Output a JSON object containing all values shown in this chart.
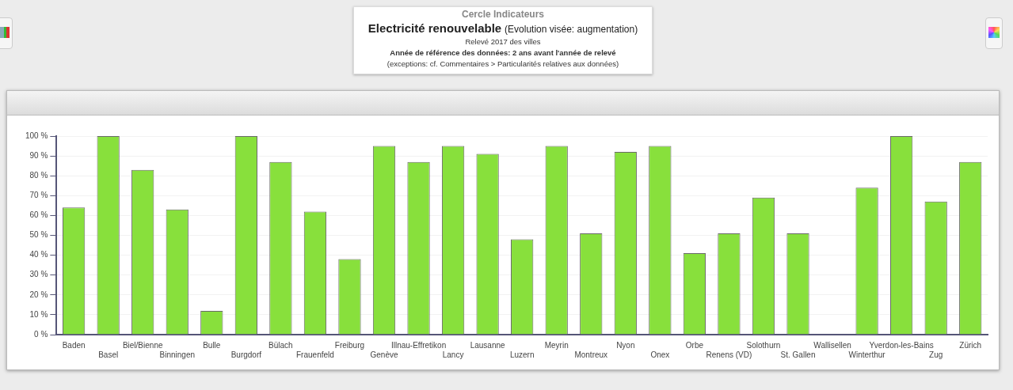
{
  "chart_data": {
    "type": "bar",
    "title": "Electricité renouvelable",
    "subtitle": "(Evolution visée: augmentation)",
    "annotations": [
      "Cercle Indicateurs",
      "Relevé 2017 des villes",
      "Année de référence des données:  2 ans avant l'année de relevé",
      "(exceptions: cf. Commentaires > Particularités relatives aux données)"
    ],
    "categories": [
      "Baden",
      "Basel",
      "Biel/Bienne",
      "Binningen",
      "Bulle",
      "Burgdorf",
      "Bülach",
      "Frauenfeld",
      "Freiburg",
      "Genève",
      "Illnau-Effretikon",
      "Lancy",
      "Lausanne",
      "Luzern",
      "Meyrin",
      "Montreux",
      "Nyon",
      "Onex",
      "Orbe",
      "Renens (VD)",
      "Solothurn",
      "St. Gallen",
      "Wallisellen",
      "Winterthur",
      "Yverdon-les-Bains",
      "Zug",
      "Zürich"
    ],
    "values": [
      64,
      100,
      83,
      63,
      12,
      100,
      87,
      62,
      38,
      95,
      87,
      95,
      91,
      48,
      95,
      51,
      92,
      95,
      41,
      51,
      69,
      51,
      0,
      74,
      100,
      67,
      87
    ],
    "color": "#88e03c",
    "ylim": [
      0,
      100
    ],
    "yticks": [
      {
        "value": 0,
        "label": "0 %"
      },
      {
        "value": 10,
        "label": "10 %"
      },
      {
        "value": 20,
        "label": "20 %"
      },
      {
        "value": 30,
        "label": "30 %"
      },
      {
        "value": 40,
        "label": "40 %"
      },
      {
        "value": 50,
        "label": "50 %"
      },
      {
        "value": 60,
        "label": "60 %"
      },
      {
        "value": 70,
        "label": "70 %"
      },
      {
        "value": 80,
        "label": "80 %"
      },
      {
        "value": 90,
        "label": "90 %"
      },
      {
        "value": 100,
        "label": "100 %"
      }
    ],
    "grid": "y"
  }
}
